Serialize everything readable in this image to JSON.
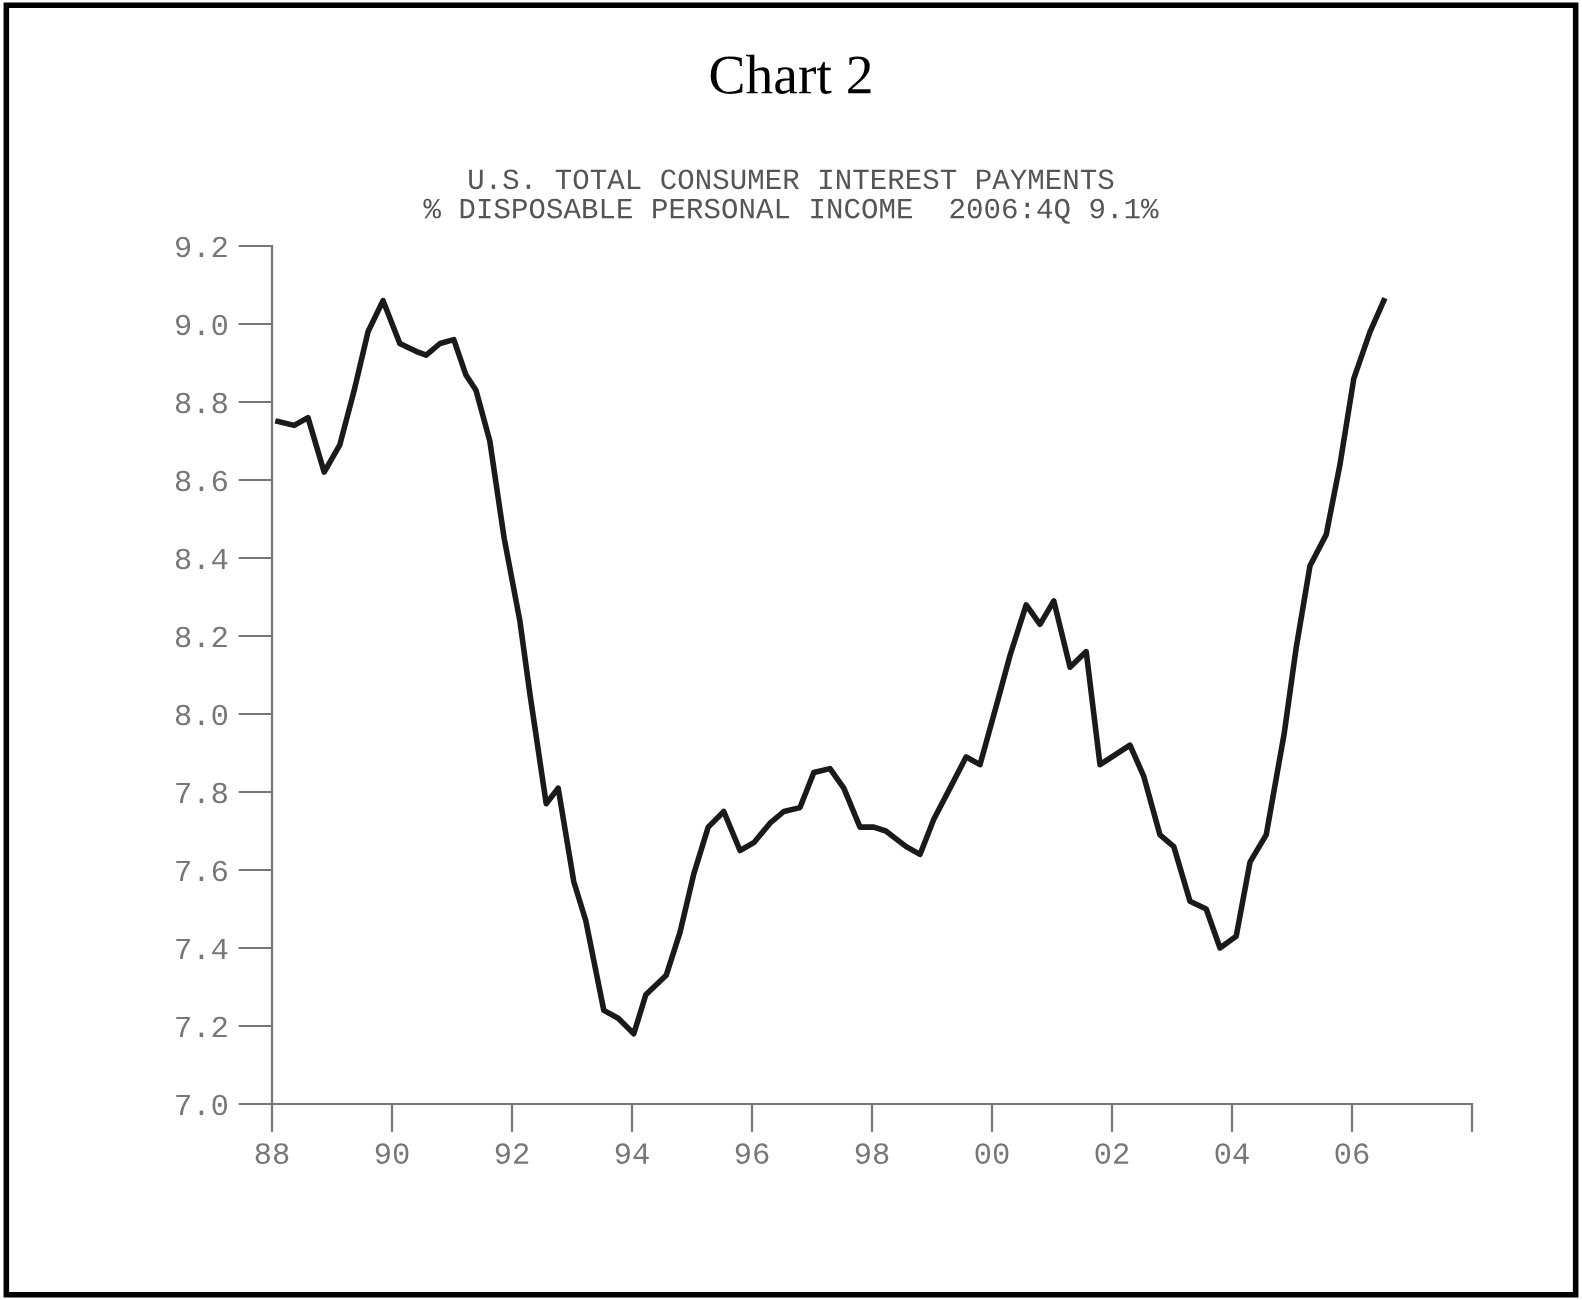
{
  "chart_data": {
    "type": "line",
    "title": "Chart 2",
    "subtitle": "U.S. TOTAL CONSUMER INTEREST PAYMENTS\n% DISPOSABLE PERSONAL INCOME  2006:4Q 9.1%",
    "x": [
      1988.1,
      1988.37,
      1988.6,
      1988.87,
      1989.13,
      1989.37,
      1989.6,
      1989.85,
      1990.13,
      1990.4,
      1990.57,
      1990.8,
      1991.03,
      1991.23,
      1991.4,
      1991.63,
      1991.87,
      1992.13,
      1992.3,
      1992.57,
      1992.77,
      1993.03,
      1993.23,
      1993.53,
      1993.77,
      1994.03,
      1994.23,
      1994.57,
      1994.8,
      1995.03,
      1995.27,
      1995.53,
      1995.8,
      1996.03,
      1996.3,
      1996.53,
      1996.8,
      1997.03,
      1997.3,
      1997.53,
      1997.8,
      1998.03,
      1998.23,
      1998.57,
      1998.8,
      1999.03,
      1999.3,
      1999.57,
      1999.8,
      2000.07,
      2000.3,
      2000.57,
      2000.8,
      2001.03,
      2001.3,
      2001.57,
      2001.8,
      2002.3,
      2002.53,
      2002.8,
      2003.03,
      2003.3,
      2003.57,
      2003.8,
      2004.07,
      2004.3,
      2004.57,
      2004.87,
      2005.07,
      2005.3,
      2005.57,
      2005.8,
      2006.03,
      2006.3,
      2006.53
    ],
    "series": [
      {
        "color": "#1a1a1a",
        "values": [
          8.75,
          8.74,
          8.76,
          8.62,
          8.69,
          8.83,
          8.98,
          9.06,
          8.95,
          8.93,
          8.92,
          8.95,
          8.96,
          8.87,
          8.83,
          8.7,
          8.45,
          8.24,
          8.05,
          7.77,
          7.81,
          7.57,
          7.47,
          7.24,
          7.22,
          7.18,
          7.28,
          7.33,
          7.44,
          7.59,
          7.71,
          7.75,
          7.65,
          7.67,
          7.72,
          7.75,
          7.76,
          7.85,
          7.86,
          7.81,
          7.71,
          7.71,
          7.7,
          7.66,
          7.64,
          7.73,
          7.81,
          7.89,
          7.87,
          8.02,
          8.15,
          8.28,
          8.23,
          8.29,
          8.12,
          8.16,
          7.87,
          7.92,
          7.84,
          7.69,
          7.66,
          7.52,
          7.5,
          7.4,
          7.43,
          7.62,
          7.69,
          7.95,
          8.17,
          8.38,
          8.46,
          8.64,
          8.86,
          8.98,
          9.06
        ]
      }
    ],
    "xlim": [
      1988,
      2008
    ],
    "xticks": [
      {
        "value": 1988,
        "label": "88"
      },
      {
        "value": 1990,
        "label": "90"
      },
      {
        "value": 1992,
        "label": "92"
      },
      {
        "value": 1994,
        "label": "94"
      },
      {
        "value": 1996,
        "label": "96"
      },
      {
        "value": 1998,
        "label": "98"
      },
      {
        "value": 2000,
        "label": "00"
      },
      {
        "value": 2002,
        "label": "02"
      },
      {
        "value": 2004,
        "label": "04"
      },
      {
        "value": 2006,
        "label": "06"
      },
      {
        "value": 2008,
        "label": null
      }
    ],
    "ylim": [
      7.0,
      9.2
    ],
    "yticks": [
      {
        "value": 7.0,
        "label": "7.0"
      },
      {
        "value": 7.2,
        "label": "7.2"
      },
      {
        "value": 7.4,
        "label": "7.4"
      },
      {
        "value": 7.6,
        "label": "7.6"
      },
      {
        "value": 7.8,
        "label": "7.8"
      },
      {
        "value": 8.0,
        "label": "8.0"
      },
      {
        "value": 8.2,
        "label": "8.2"
      },
      {
        "value": 8.4,
        "label": "8.4"
      },
      {
        "value": 8.6,
        "label": "8.6"
      },
      {
        "value": 8.8,
        "label": "8.8"
      },
      {
        "value": 9.0,
        "label": "9.0"
      },
      {
        "value": 9.2,
        "label": "9.2"
      }
    ],
    "grid": false,
    "legend": false,
    "line_style": "solid",
    "marker": "none"
  }
}
